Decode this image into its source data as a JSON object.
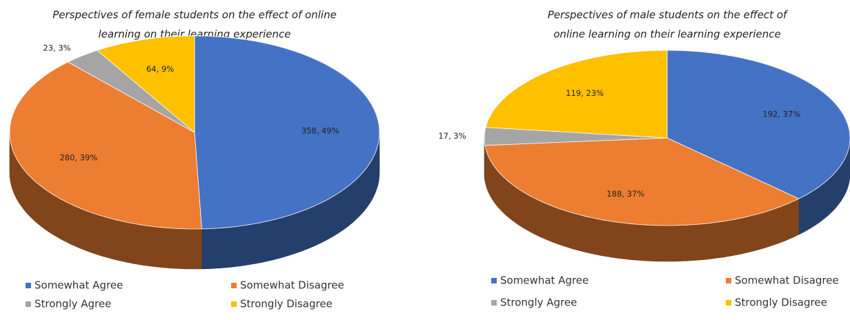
{
  "chart_data": [
    {
      "type": "pie3d",
      "title": [
        "Perspectives of female students on the effect of online",
        "learning on their learning experience"
      ],
      "categories": [
        "Somewhat Agree",
        "Somewhat Disagree",
        "Strongly Agree",
        "Strongly Disagree"
      ],
      "values": [
        358,
        280,
        23,
        64
      ],
      "value_labels": [
        "358, 49%",
        "280, 39%",
        "23, 3%",
        "64, 9%"
      ],
      "colors": [
        "#4472c4",
        "#ed7d31",
        "#a5a5a5",
        "#ffc000"
      ],
      "legend": "bottom"
    },
    {
      "type": "pie3d",
      "title": [
        "Perspectives of male students on the effect of",
        "online learning on their learning experience"
      ],
      "categories": [
        "Somewhat Agree",
        "Somewhat Disagree",
        "Strongly Agree",
        "Strongly Disagree"
      ],
      "values": [
        192,
        188,
        17,
        119
      ],
      "value_labels": [
        "192, 37%",
        "188, 37%",
        "17, 3%",
        "119, 23%"
      ],
      "colors": [
        "#4472c4",
        "#ed7d31",
        "#a5a5a5",
        "#ffc000"
      ],
      "legend": "bottom"
    }
  ]
}
